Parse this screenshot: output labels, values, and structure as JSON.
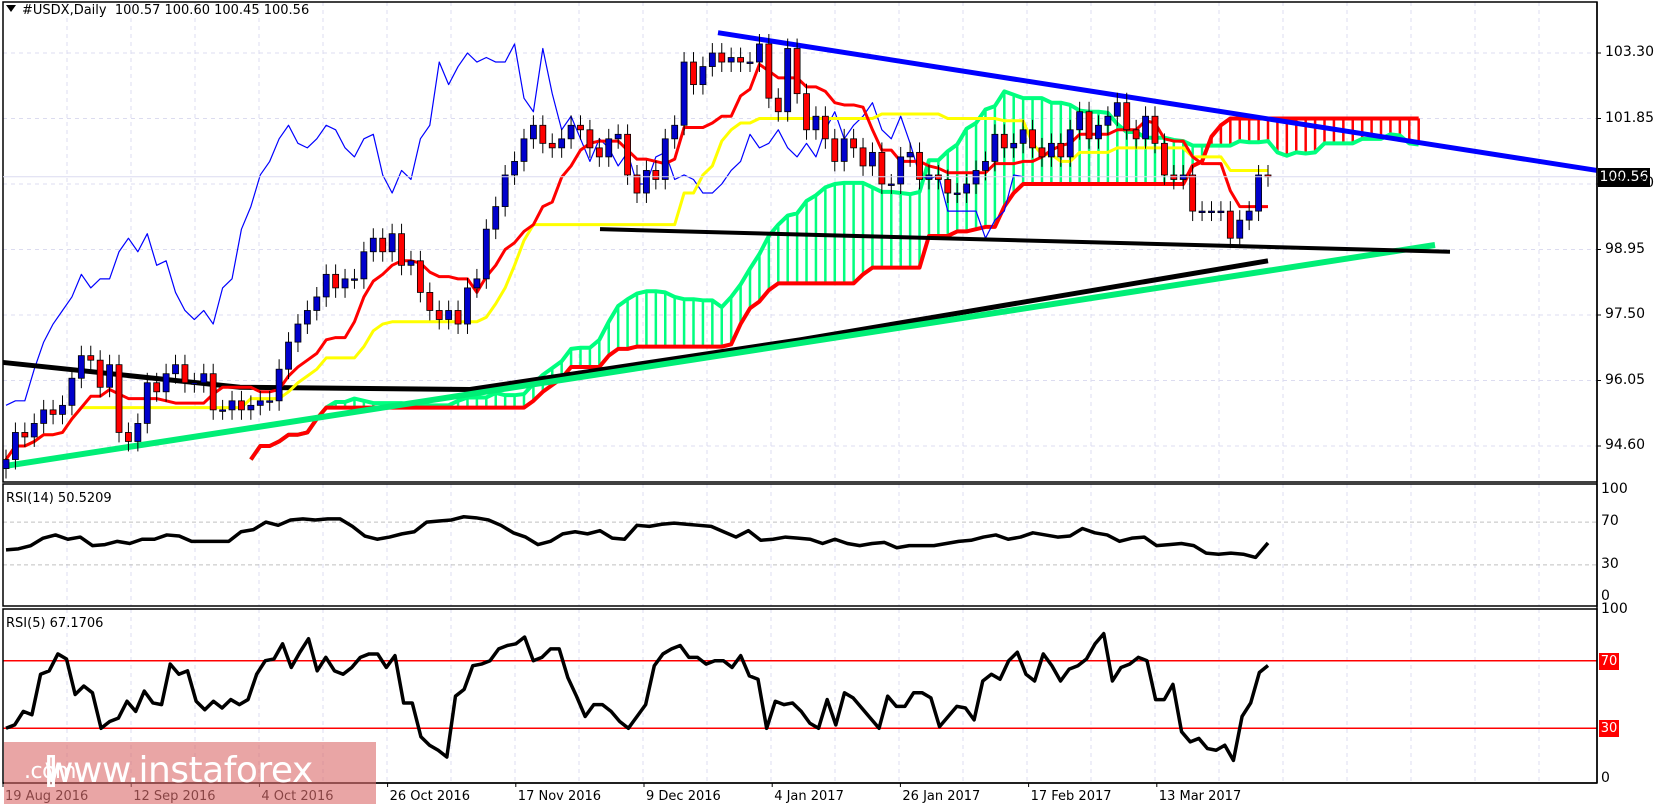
{
  "header": {
    "symbol": "#USDX,Daily",
    "ohlc": "100.57 100.60 100.45 100.56",
    "last_price": "100.56"
  },
  "indicators": {
    "rsi14_label": "RSI(14) 50.5209",
    "rsi5_label": "RSI(5) 67.1706"
  },
  "watermark": {
    "open_bracket": "[",
    "text": " www.instaforex",
    "suffix": ".com",
    "close_bracket": " ]"
  },
  "colors": {
    "bull_candle": "#0000cc",
    "bear_candle": "#ff0000",
    "tenkan": "#ff0000",
    "kijun": "#ffff00",
    "chikou": "#0000ff",
    "senkou_a": "#00ff7f",
    "senkou_b": "#ff0000",
    "resistance_line": "#0000ff",
    "support_line": "#00ee76",
    "horizontal_support": "#000000",
    "level_line": "#ff0000"
  },
  "chart_data": [
    {
      "type": "candlestick",
      "title": "#USDX,Daily",
      "ohlc_last": {
        "open": 100.57,
        "high": 100.6,
        "low": 100.45,
        "close": 100.56
      },
      "ylim": [
        93.9,
        104.3
      ],
      "yticks": [
        103.3,
        101.85,
        100.4,
        98.95,
        97.5,
        96.05,
        94.6
      ],
      "xticks": [
        "19 Aug 2016",
        "12 Sep 2016",
        "4 Oct 2016",
        "26 Oct 2016",
        "17 Nov 2016",
        "9 Dec 2016",
        "4 Jan 2017",
        "26 Jan 2017",
        "17 Feb 2017",
        "13 Mar 2017"
      ],
      "overlays": [
        "Ichimoku Kinko Hyo (Tenkan red, Kijun yellow, Chikou blue, Kumo green/red hatched)",
        "Descending blue trendline from ~103.85 (early Jan 2017) to ~100.7",
        "Ascending green trendline from ~94.2 (Aug 2016) to ~99.1",
        "Black horizontal support ~98.95-99.4",
        "Black curved moving average line"
      ],
      "candles_close_approx": [
        94.3,
        94.9,
        94.8,
        95.1,
        95.4,
        95.3,
        95.5,
        96.1,
        96.6,
        96.5,
        95.9,
        96.4,
        94.9,
        94.7,
        95.1,
        96.0,
        95.8,
        96.2,
        96.4,
        96.0,
        96.0,
        96.2,
        95.4,
        95.4,
        95.6,
        95.4,
        95.5,
        95.6,
        95.6,
        96.3,
        96.9,
        97.3,
        97.6,
        97.9,
        98.4,
        98.1,
        98.3,
        98.3,
        98.9,
        99.2,
        98.9,
        99.3,
        98.6,
        98.7,
        98.0,
        97.6,
        97.4,
        97.6,
        97.3,
        98.1,
        98.3,
        99.4,
        99.9,
        100.6,
        100.9,
        101.4,
        101.7,
        101.3,
        101.2,
        101.4,
        101.7,
        101.6,
        101.2,
        101.0,
        101.4,
        101.5,
        100.6,
        100.2,
        100.7,
        100.5,
        101.4,
        101.7,
        103.1,
        102.6,
        103.0,
        103.3,
        103.1,
        103.2,
        103.1,
        103.1,
        103.5,
        102.3,
        102.0,
        103.4,
        102.4,
        101.6,
        101.9,
        101.4,
        100.9,
        101.4,
        101.2,
        100.8,
        101.1,
        100.4,
        100.4,
        101.0,
        101.1,
        100.5,
        100.6,
        100.5,
        100.2,
        100.2,
        100.4,
        100.7,
        100.9,
        101.5,
        101.2,
        101.3,
        101.6,
        101.2,
        101.0,
        101.3,
        101.0,
        101.6,
        102.0,
        101.4,
        101.7,
        101.9,
        102.2,
        101.6,
        101.4,
        101.9,
        101.3,
        100.6,
        100.5,
        100.6,
        99.8,
        99.8,
        99.8,
        99.8,
        99.2,
        99.6,
        99.8,
        100.6,
        100.56
      ]
    },
    {
      "type": "line",
      "title": "RSI(14) 50.5209",
      "ylim": [
        0,
        100
      ],
      "yticks": [
        100,
        70,
        30,
        0
      ],
      "levels": [
        70,
        30
      ],
      "values": [
        44,
        45,
        48,
        55,
        58,
        54,
        56,
        48,
        49,
        52,
        50,
        54,
        54,
        58,
        57,
        52,
        52,
        52,
        52,
        61,
        63,
        70,
        67,
        72,
        73,
        72,
        73,
        73,
        66,
        57,
        54,
        56,
        59,
        61,
        70,
        71,
        72,
        75,
        74,
        72,
        67,
        60,
        56,
        49,
        52,
        59,
        61,
        59,
        62,
        55,
        54,
        67,
        66,
        68,
        69,
        68,
        67,
        66,
        61,
        56,
        62,
        53,
        54,
        56,
        55,
        54,
        50,
        54,
        50,
        48,
        50,
        51,
        46,
        48,
        48,
        48,
        50,
        52,
        53,
        56,
        58,
        54,
        56,
        60,
        58,
        56,
        57,
        64,
        60,
        58,
        52,
        55,
        56,
        48,
        49,
        50,
        48,
        41,
        40,
        41,
        40,
        37,
        50.52
      ]
    },
    {
      "type": "line",
      "title": "RSI(5) 67.1706",
      "ylim": [
        0,
        100
      ],
      "yticks": [
        100,
        70,
        30,
        0
      ],
      "levels": [
        70,
        30
      ],
      "values": [
        30,
        32,
        40,
        38,
        62,
        64,
        74,
        71,
        50,
        55,
        51,
        30,
        34,
        36,
        46,
        40,
        52,
        45,
        44,
        68,
        62,
        64,
        46,
        41,
        46,
        42,
        47,
        44,
        47,
        62,
        70,
        71,
        80,
        66,
        75,
        83,
        64,
        72,
        64,
        62,
        66,
        72,
        74,
        74,
        66,
        73,
        45,
        45,
        25,
        20,
        17,
        13,
        49,
        53,
        67,
        68,
        70,
        77,
        79,
        80,
        84,
        70,
        72,
        77,
        77,
        60,
        49,
        37,
        44,
        44,
        40,
        34,
        30,
        37,
        44,
        67,
        74,
        77,
        79,
        72,
        72,
        68,
        70,
        70,
        66,
        73,
        61,
        59,
        30,
        46,
        44,
        45,
        40,
        33,
        30,
        47,
        32,
        51,
        48,
        42,
        36,
        30,
        49,
        43,
        43,
        51,
        51,
        48,
        31,
        37,
        43,
        42,
        35,
        58,
        62,
        59,
        70,
        75,
        62,
        58,
        74,
        67,
        58,
        65,
        67,
        71,
        80,
        86,
        58,
        66,
        68,
        72,
        70,
        47,
        47,
        56,
        28,
        22,
        24,
        18,
        17,
        20,
        11,
        37,
        45,
        63,
        67.17
      ]
    }
  ]
}
